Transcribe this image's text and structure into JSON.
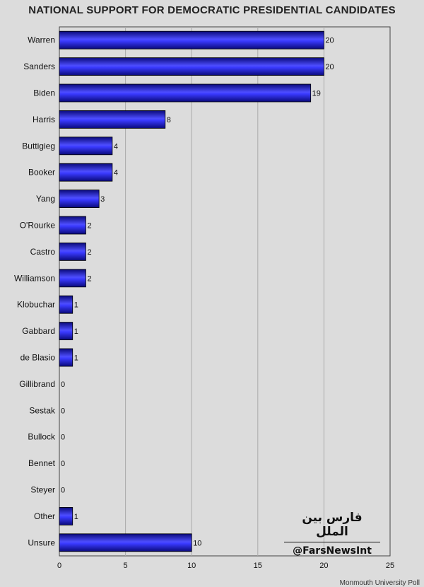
{
  "chart_data": {
    "type": "bar",
    "orientation": "horizontal",
    "title": "NATIONAL SUPPORT FOR DEMOCRATIC PRESIDENTIAL CANDIDATES",
    "categories": [
      "Warren",
      "Sanders",
      "Biden",
      "Harris",
      "Buttigieg",
      "Booker",
      "Yang",
      "O'Rourke",
      "Castro",
      "Williamson",
      "Klobuchar",
      "Gabbard",
      "de Blasio",
      "Gillibrand",
      "Sestak",
      "Bullock",
      "Bennet",
      "Steyer",
      "Other",
      "Unsure"
    ],
    "values": [
      20,
      20,
      19,
      8,
      4,
      4,
      3,
      2,
      2,
      2,
      1,
      1,
      1,
      0,
      0,
      0,
      0,
      0,
      1,
      10
    ],
    "xlim": [
      0,
      25
    ],
    "xticks": [
      0,
      5,
      10,
      15,
      20,
      25
    ],
    "grid": true,
    "bar_color": "#1a1aee",
    "source": "Monmouth University Poll"
  },
  "watermark": {
    "logo": "فارس بین الملل",
    "handle": "@FarsNewsInt"
  }
}
